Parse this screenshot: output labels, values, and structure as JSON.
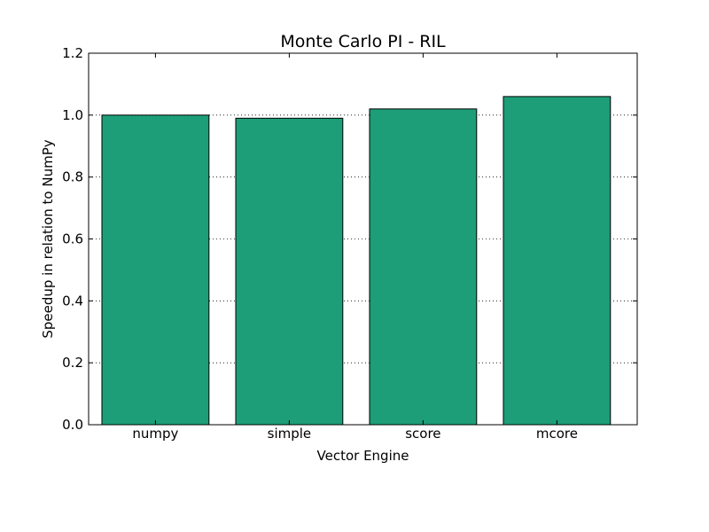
{
  "chart_data": {
    "type": "bar",
    "title": "Monte Carlo PI - RIL",
    "xlabel": "Vector Engine",
    "ylabel": "Speedup in relation to NumPy",
    "categories": [
      "numpy",
      "simple",
      "score",
      "mcore"
    ],
    "values": [
      1.0,
      0.99,
      1.02,
      1.06
    ],
    "ylim": [
      0,
      1.2
    ],
    "yticks": [
      "0.0",
      "0.2",
      "0.4",
      "0.6",
      "0.8",
      "1.0",
      "1.2"
    ],
    "grid": "horizontal dotted",
    "legend": "none",
    "bar_color": "#1d9e78"
  }
}
